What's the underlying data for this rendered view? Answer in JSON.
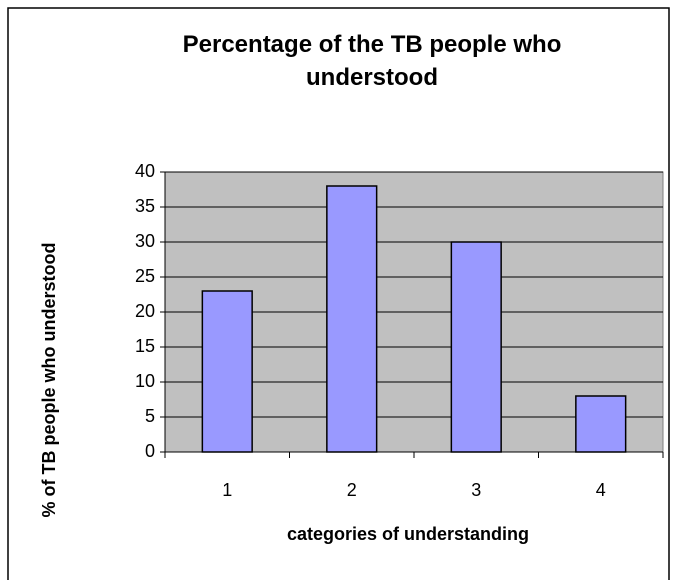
{
  "chart_data": {
    "type": "bar",
    "title": "Percentage of the TB people who understood",
    "x_label": "categories of understanding",
    "y_label": "% of TB people who understood",
    "categories": [
      "1",
      "2",
      "3",
      "4"
    ],
    "values": [
      23,
      38,
      30,
      8
    ],
    "color": "#9999ff",
    "ylim": [
      0,
      40
    ],
    "yticks": [
      0,
      5,
      10,
      15,
      20,
      25,
      30,
      35,
      40
    ],
    "grid": true,
    "plot_color": "#c0c0c0"
  }
}
